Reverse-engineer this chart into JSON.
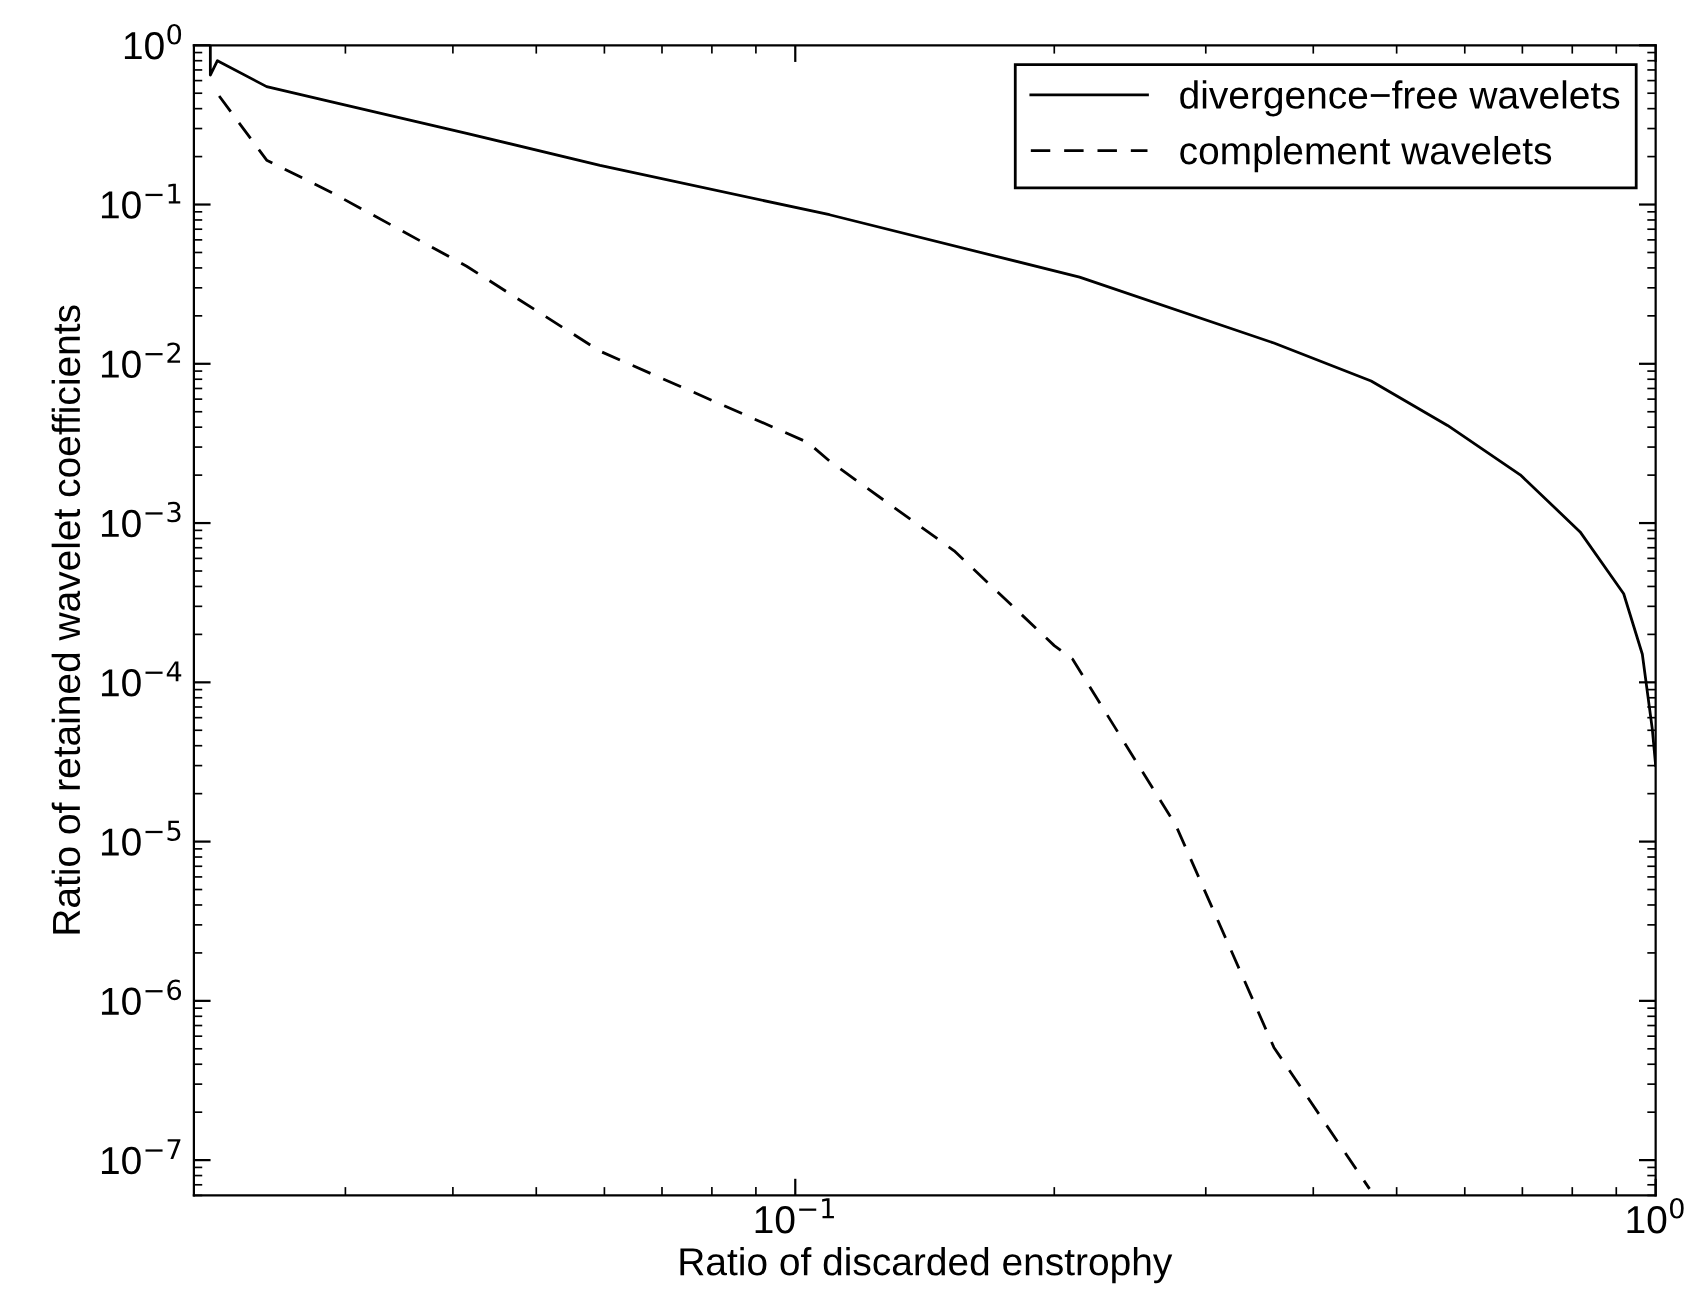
{
  "chart_data": {
    "type": "line",
    "xlabel": "Ratio of discarded enstrophy",
    "ylabel": "Ratio of retained wavelet coefficients",
    "log": "xy",
    "xlim": [
      0.02,
      1
    ],
    "ylim": [
      6e-08,
      1
    ],
    "xticks": [
      {
        "value": 0.1,
        "label": "10$^{−1}$"
      },
      {
        "value": 1,
        "label": "10$^{0}$"
      }
    ],
    "yticks": [
      {
        "value": 1e-07,
        "label": "10$^{−7}$"
      },
      {
        "value": 1e-06,
        "label": "10$^{−6}$"
      },
      {
        "value": 1e-05,
        "label": "10$^{−5}$"
      },
      {
        "value": 0.0001,
        "label": "10$^{−4}$"
      },
      {
        "value": 0.001,
        "label": "10$^{−3}$"
      },
      {
        "value": 0.01,
        "label": "10$^{−2}$"
      },
      {
        "value": 0.1,
        "label": "10$^{−1}$"
      },
      {
        "value": 1,
        "label": "10$^{0}$"
      }
    ],
    "grid": false,
    "legend": "top right",
    "marker": "none",
    "series": [
      {
        "name": "divergence−free wavelets",
        "color": "#000000",
        "line_style": "solid",
        "x": [
          0.0209,
          0.0209,
          0.0213,
          0.0243,
          0.029,
          0.0415,
          0.0593,
          0.1096,
          0.214,
          0.36,
          0.467,
          0.573,
          0.696,
          0.817,
          0.918,
          0.965,
          0.991,
          1.0
        ],
        "values": [
          1.0,
          0.65,
          0.8,
          0.55,
          0.44,
          0.28,
          0.176,
          0.0863,
          0.035,
          0.0135,
          0.0078,
          0.0041,
          0.00201,
          0.00088,
          0.00036,
          0.00015,
          5.1e-05,
          3e-05
        ]
      },
      {
        "name": "complement wavelets",
        "color": "#000000",
        "line_style": "dashed",
        "x": [
          0.0214,
          0.0243,
          0.029,
          0.0415,
          0.0593,
          0.1035,
          0.1096,
          0.153,
          0.2,
          0.21,
          0.277,
          0.36,
          0.465
        ],
        "values": [
          0.48,
          0.19,
          0.118,
          0.041,
          0.012,
          0.0032,
          0.00245,
          0.00067,
          0.00017,
          0.00014,
          1.26e-05,
          5.1e-07,
          6.6e-08
        ]
      }
    ]
  }
}
